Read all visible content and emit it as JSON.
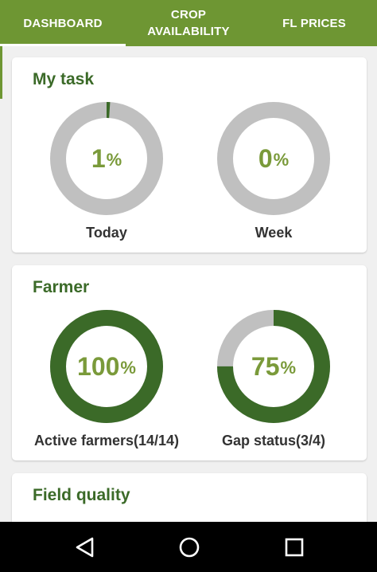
{
  "tabs": [
    {
      "label": "DASHBOARD",
      "active": true
    },
    {
      "label": "CROP\nAVAILABILITY",
      "active": false
    },
    {
      "label": "FL PRICES",
      "active": false
    }
  ],
  "colors": {
    "primary": "#6e9633",
    "ring_fill": "#3b6a28",
    "ring_track": "#c0c0c0",
    "value_text": "#7a9a3a"
  },
  "cards": {
    "my_task": {
      "title": "My task",
      "gauges": [
        {
          "value": "1",
          "unit": "%",
          "percent": 1,
          "label": "Today"
        },
        {
          "value": "0",
          "unit": "%",
          "percent": 0,
          "label": "Week"
        }
      ]
    },
    "farmer": {
      "title": "Farmer",
      "gauges": [
        {
          "value": "100",
          "unit": "%",
          "percent": 100,
          "label": "Active farmers(14/14)"
        },
        {
          "value": "75",
          "unit": "%",
          "percent": 75,
          "label": "Gap status(3/4)"
        }
      ]
    },
    "field_quality": {
      "title": "Field quality"
    }
  },
  "nav": {
    "icons": [
      "back-triangle-icon",
      "home-circle-icon",
      "recents-square-icon"
    ]
  }
}
